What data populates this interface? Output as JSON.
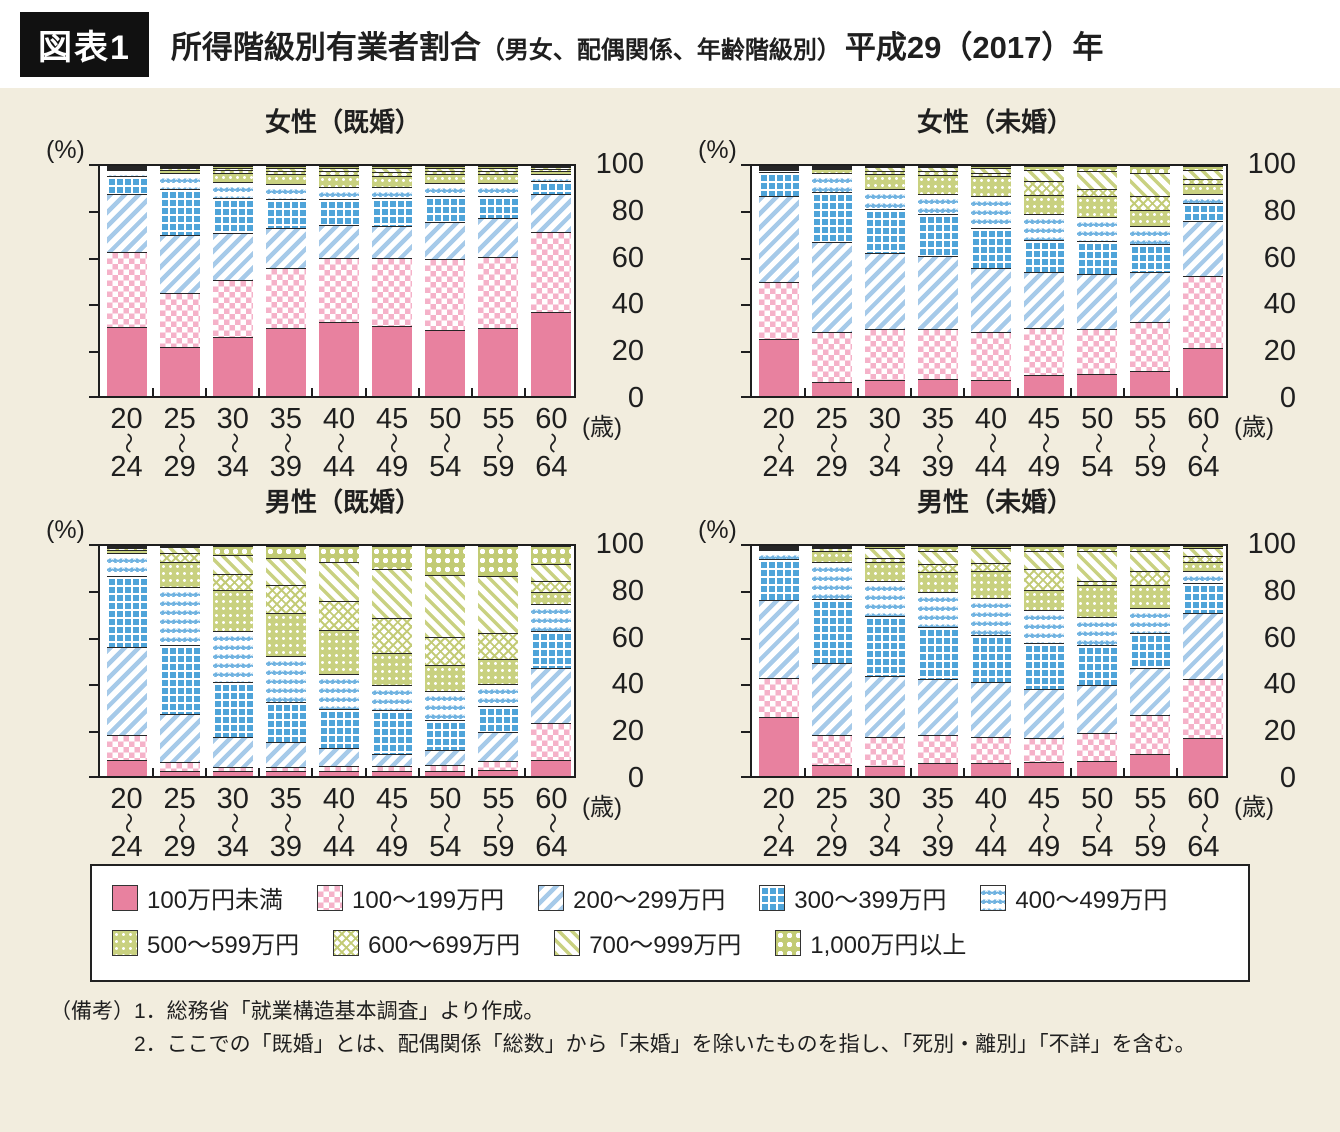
{
  "header": {
    "tag": "図表1",
    "title_main": "所得階級別有業者割合",
    "title_paren": "（男女、配偶関係、年齢階級別）",
    "title_year": "平成29（2017）年"
  },
  "axis": {
    "y_unit": "(%)",
    "x_unit": "(歳)",
    "y_ticks": [
      0,
      20,
      40,
      60,
      80,
      100
    ],
    "y_max": 100,
    "range_separator": "〜"
  },
  "age_categories": [
    {
      "from": "20",
      "to": "24"
    },
    {
      "from": "25",
      "to": "29"
    },
    {
      "from": "30",
      "to": "34"
    },
    {
      "from": "35",
      "to": "39"
    },
    {
      "from": "40",
      "to": "44"
    },
    {
      "from": "45",
      "to": "49"
    },
    {
      "from": "50",
      "to": "54"
    },
    {
      "from": "55",
      "to": "59"
    },
    {
      "from": "60",
      "to": "64"
    }
  ],
  "income_classes": [
    "100万円未満",
    "100〜199万円",
    "200〜299万円",
    "300〜399万円",
    "400〜499万円",
    "500〜599万円",
    "600〜699万円",
    "700〜999万円",
    "1,000万円以上"
  ],
  "legend": {
    "row_break_after": 5
  },
  "colors": {
    "panel_bg": "#f2edde",
    "plot_bg": "#ffffff",
    "axis": "#1f1f1f",
    "pink_solid": "#e8819f",
    "pink_light": "#f5b2c9",
    "blue_stripe": "#a6cae9",
    "blue_grid": "#4fa4d9",
    "blue_wave": "#6fb2e0",
    "olive": "#c9d180",
    "olive_stripe": "#c3cb76"
  },
  "chart_data": [
    {
      "type": "bar",
      "stacked": true,
      "title": "女性（既婚）",
      "xlabel": "(歳)",
      "ylabel": "(%)",
      "ylim": [
        0,
        100
      ],
      "grid": false,
      "categories": [
        "20〜24",
        "25〜29",
        "30〜34",
        "35〜39",
        "40〜44",
        "45〜49",
        "50〜54",
        "55〜59",
        "60〜64"
      ],
      "series": [
        {
          "name": "100万円未満",
          "values": [
            30,
            21.5,
            25.5,
            29.5,
            32,
            30.5,
            28.5,
            29.5,
            36.5
          ]
        },
        {
          "name": "100〜199万円",
          "values": [
            33,
            23.5,
            25,
            26,
            28,
            29.5,
            31,
            31,
            35
          ]
        },
        {
          "name": "200〜299万円",
          "values": [
            25,
            25,
            20.5,
            17.5,
            14.5,
            14,
            16,
            17,
            16.5
          ]
        },
        {
          "name": "300〜399万円",
          "values": [
            8,
            20,
            15,
            12.5,
            11,
            12,
            11.5,
            9.5,
            5.5
          ]
        },
        {
          "name": "400〜499万円",
          "values": [
            2.5,
            7,
            7,
            6.5,
            5.5,
            5,
            5.5,
            5.5,
            3
          ]
        },
        {
          "name": "500〜599万円",
          "values": [
            0.6,
            1.5,
            4,
            4.5,
            5,
            4.5,
            4,
            4,
            1.5
          ]
        },
        {
          "name": "600〜699万円",
          "values": [
            0.4,
            0.6,
            1.2,
            1.5,
            2,
            2,
            1.5,
            1.5,
            0.8
          ]
        },
        {
          "name": "700〜999万円",
          "values": [
            0.3,
            0.5,
            1,
            1.2,
            1.2,
            1.5,
            1.2,
            1.2,
            0.7
          ]
        },
        {
          "name": "1,000万円以上",
          "values": [
            0.2,
            0.4,
            0.8,
            0.8,
            0.8,
            1,
            0.8,
            0.8,
            0.5
          ]
        }
      ]
    },
    {
      "type": "bar",
      "stacked": true,
      "title": "女性（未婚）",
      "xlabel": "(歳)",
      "ylabel": "(%)",
      "ylim": [
        0,
        100
      ],
      "grid": false,
      "categories": [
        "20〜24",
        "25〜29",
        "30〜34",
        "35〜39",
        "40〜44",
        "45〜49",
        "50〜54",
        "55〜59",
        "60〜64"
      ],
      "series": [
        {
          "name": "100万円未満",
          "values": [
            25,
            6,
            7,
            7.5,
            7,
            9,
            9.5,
            11,
            21
          ]
        },
        {
          "name": "100〜199万円",
          "values": [
            25,
            22,
            22,
            21.5,
            21,
            20.5,
            19.5,
            21,
            31
          ]
        },
        {
          "name": "200〜299万円",
          "values": [
            38,
            39,
            33,
            32,
            27.5,
            24.5,
            24,
            22,
            24
          ]
        },
        {
          "name": "300〜399万円",
          "values": [
            10.5,
            22,
            19.5,
            18,
            17.5,
            14,
            14.5,
            12,
            8
          ]
        },
        {
          "name": "400〜499万円",
          "values": [
            1,
            8.5,
            8.5,
            9,
            14,
            11,
            10.5,
            8,
            4
          ]
        },
        {
          "name": "500〜599万円",
          "values": [
            0.2,
            1.5,
            6.5,
            8,
            8.5,
            8.5,
            9,
            7,
            4
          ]
        },
        {
          "name": "600〜699万円",
          "values": [
            0.1,
            0.5,
            1.5,
            2,
            1.5,
            6,
            3,
            6,
            2.5
          ]
        },
        {
          "name": "700〜999万円",
          "values": [
            0.1,
            0.3,
            1.5,
            1.5,
            2,
            5,
            8,
            10,
            4
          ]
        },
        {
          "name": "1,000万円以上",
          "values": [
            0.1,
            0.2,
            0.5,
            0.5,
            1,
            1.5,
            2,
            3,
            1.5
          ]
        }
      ]
    },
    {
      "type": "bar",
      "stacked": true,
      "title": "男性（既婚）",
      "xlabel": "(歳)",
      "ylabel": "(%)",
      "ylim": [
        0,
        100
      ],
      "grid": false,
      "categories": [
        "20〜24",
        "25〜29",
        "30〜34",
        "35〜39",
        "40〜44",
        "45〜49",
        "50〜54",
        "55〜59",
        "60〜64"
      ],
      "series": [
        {
          "name": "100万円未満",
          "values": [
            7,
            2,
            2,
            2,
            2,
            2,
            2,
            2.5,
            7
          ]
        },
        {
          "name": "100〜199万円",
          "values": [
            11,
            4,
            2,
            2,
            2.5,
            2.5,
            3,
            4,
            16
          ]
        },
        {
          "name": "200〜299万円",
          "values": [
            38,
            21,
            13,
            11,
            7.5,
            5,
            6.5,
            12.5,
            24
          ]
        },
        {
          "name": "300〜399万円",
          "values": [
            31,
            30,
            24,
            17,
            17,
            19,
            13,
            11.5,
            16
          ]
        },
        {
          "name": "400〜499万円",
          "values": [
            10,
            25,
            22,
            20,
            15.5,
            11,
            12.5,
            9.5,
            12
          ]
        },
        {
          "name": "500〜599万円",
          "values": [
            1.5,
            11,
            18,
            19,
            19,
            14,
            11.5,
            11,
            5
          ]
        },
        {
          "name": "600〜699万円",
          "values": [
            0.6,
            4,
            7,
            12,
            12.5,
            15,
            12,
            11,
            5
          ]
        },
        {
          "name": "700〜999万円",
          "values": [
            0.5,
            2.5,
            8,
            12,
            17,
            21.5,
            27,
            25,
            7
          ]
        },
        {
          "name": "1,000万円以上",
          "values": [
            0.4,
            0.5,
            4,
            5,
            7,
            10,
            12.5,
            13,
            8
          ]
        }
      ]
    },
    {
      "type": "bar",
      "stacked": true,
      "title": "男性（未婚）",
      "xlabel": "(歳)",
      "ylabel": "(%)",
      "ylim": [
        0,
        100
      ],
      "grid": false,
      "categories": [
        "20〜24",
        "25〜29",
        "30〜34",
        "35〜39",
        "40〜44",
        "45〜49",
        "50〜54",
        "55〜59",
        "60〜64"
      ],
      "series": [
        {
          "name": "100万円未満",
          "values": [
            26,
            5,
            4.5,
            5.5,
            5.5,
            6,
            6.5,
            9.5,
            16.5
          ]
        },
        {
          "name": "100〜199万円",
          "values": [
            17,
            13,
            12.5,
            12.5,
            11.5,
            10.5,
            12,
            17,
            25.5
          ]
        },
        {
          "name": "200〜299万円",
          "values": [
            34,
            31,
            26.5,
            24,
            24,
            21.5,
            21,
            20.5,
            29
          ]
        },
        {
          "name": "300〜399万円",
          "values": [
            18,
            28,
            26,
            23,
            20.5,
            20,
            17.5,
            15,
            13
          ]
        },
        {
          "name": "400〜499万円",
          "values": [
            4,
            16,
            15.5,
            15,
            16,
            14,
            12,
            11,
            5
          ]
        },
        {
          "name": "500〜599万円",
          "values": [
            0.4,
            5,
            8,
            8.5,
            11.5,
            9,
            14,
            10,
            4
          ]
        },
        {
          "name": "600〜699万円",
          "values": [
            0.2,
            1,
            2,
            3.5,
            3.5,
            9,
            2,
            6,
            2.5
          ]
        },
        {
          "name": "700〜999万円",
          "values": [
            0.2,
            0.6,
            4,
            6,
            6.5,
            8,
            13,
            9,
            3.5
          ]
        },
        {
          "name": "1,000万円以上",
          "values": [
            0.2,
            0.4,
            1,
            2,
            1,
            2,
            2,
            2,
            1
          ]
        }
      ]
    }
  ],
  "notes": {
    "label": "（備考）",
    "lines": [
      "1．総務省「就業構造基本調査」より作成。",
      "2．ここでの「既婚」とは、配偶関係「総数」から「未婚」を除いたものを指し、「死別・離別」「不詳」を含む。"
    ]
  }
}
